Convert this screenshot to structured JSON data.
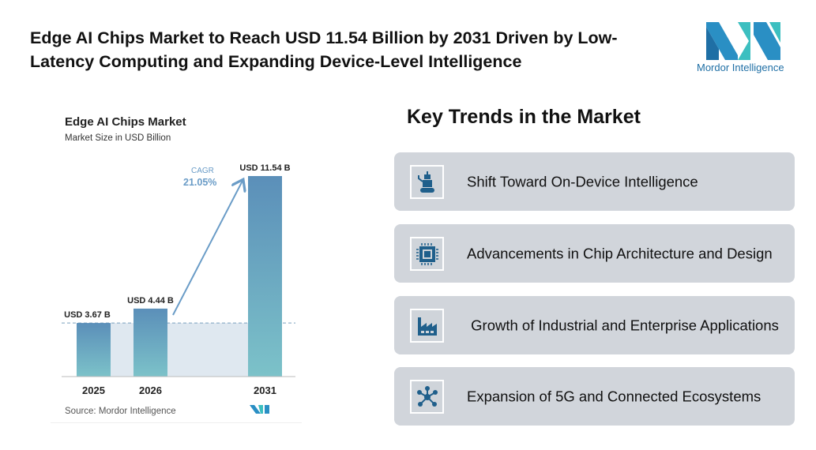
{
  "header": {
    "title": "Edge AI Chips Market to Reach USD 11.54 Billion by 2031 Driven by Low-Latency Computing and Expanding Device-Level Intelligence",
    "logo_text": "Mordor Intelligence"
  },
  "chart_data": {
    "type": "bar",
    "title": "Edge AI Chips Market",
    "subtitle": "Market Size in USD Billion",
    "categories": [
      "2025",
      "2026",
      "2031"
    ],
    "values": [
      3.67,
      4.44,
      11.54
    ],
    "data_labels": [
      "USD 3.67 B",
      "USD 4.44 B",
      "USD 11.54 B"
    ],
    "cagr_label": "CAGR",
    "cagr_value": "21.05%",
    "source": "Source: Mordor Intelligence",
    "colors": {
      "bar_top": "#5b8fb9",
      "bar_bottom": "#7cc2c9",
      "cagr": "#6a9cc7"
    }
  },
  "trends": {
    "title": "Key Trends in the Market",
    "items": [
      {
        "label": "Shift Toward On-Device Intelligence",
        "icon": "robot-icon"
      },
      {
        "label": "Advancements in Chip Architecture and Design",
        "icon": "chip-icon"
      },
      {
        "label": " Growth of Industrial and Enterprise Applications",
        "icon": "factory-icon"
      },
      {
        "label": "Expansion of 5G and Connected Ecosystems",
        "icon": "network-hub-icon"
      }
    ]
  }
}
